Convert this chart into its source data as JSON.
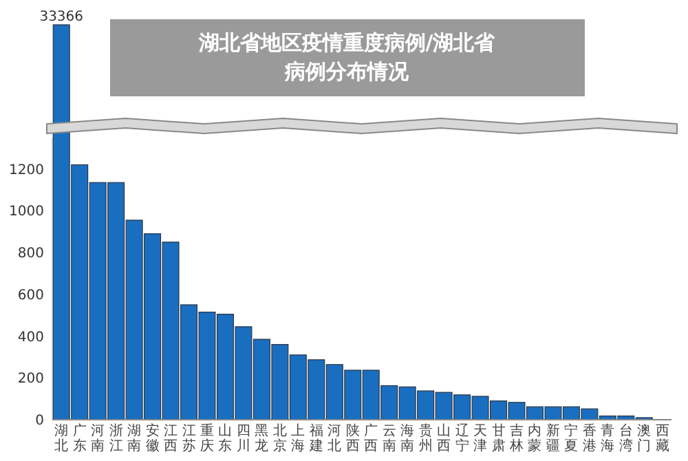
{
  "chart_data": [
    {
      "type": "bar",
      "categories": [
        "湖北"
      ],
      "values": [
        33366
      ],
      "data_labels": true,
      "color": "#1a6ec0"
    },
    {
      "type": "bar",
      "title": "湖北省地区疫情重度病例/湖北省病例分布情况",
      "categories": [
        null,
        "广东",
        "河南",
        "浙江",
        "湖南",
        "安徽",
        "江西",
        "江苏",
        "重庆",
        "山东",
        "四川",
        "黑龙",
        "北京",
        "上海",
        "福建",
        "河北",
        "陕西",
        "广西",
        "云南",
        "海南",
        "贵州",
        "山西",
        "辽宁",
        "天津",
        "甘肃",
        "吉林",
        "内蒙",
        "新疆",
        "宁夏",
        "香港",
        "青海",
        "台湾",
        "澳门",
        "西藏"
      ],
      "values": [
        null,
        1220,
        1135,
        1135,
        955,
        890,
        850,
        550,
        515,
        505,
        445,
        385,
        360,
        310,
        287,
        264,
        237,
        237,
        163,
        157,
        138,
        131,
        119,
        112,
        90,
        83,
        62,
        62,
        62,
        52,
        18,
        18,
        10,
        1
      ],
      "color": "#1a6ec0",
      "ylim": [
        0,
        1350
      ],
      "yticks": [
        0,
        200,
        400,
        600,
        800,
        1000,
        1200
      ],
      "grid": false
    }
  ]
}
